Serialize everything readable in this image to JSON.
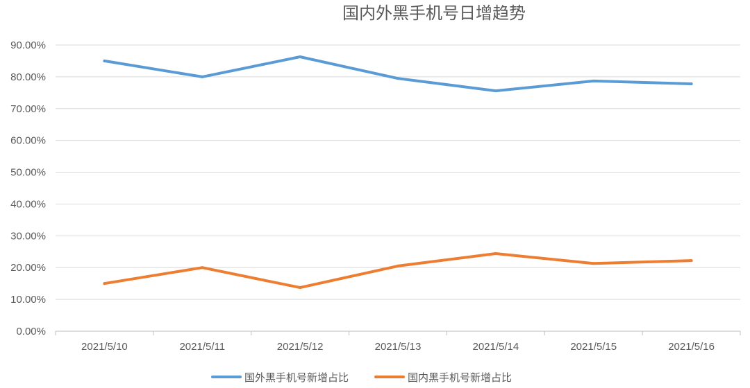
{
  "chart_data": {
    "type": "line",
    "title": "国内外黑手机号日增趋势",
    "xlabel": "",
    "ylabel": "",
    "categories": [
      "2021/5/10",
      "2021/5/11",
      "2021/5/12",
      "2021/5/13",
      "2021/5/14",
      "2021/5/15",
      "2021/5/16"
    ],
    "series": [
      {
        "name": "国外黑手机号新增占比",
        "color": "#5b9bd5",
        "values": [
          85.0,
          80.0,
          86.3,
          79.5,
          75.6,
          78.7,
          77.8
        ]
      },
      {
        "name": "国内黑手机号新增占比",
        "color": "#ed7d31",
        "values": [
          15.0,
          20.0,
          13.7,
          20.5,
          24.4,
          21.3,
          22.2
        ]
      }
    ],
    "ylim": [
      0,
      90
    ],
    "yticks": [
      "0.00%",
      "10.00%",
      "20.00%",
      "30.00%",
      "40.00%",
      "50.00%",
      "60.00%",
      "70.00%",
      "80.00%",
      "90.00%"
    ],
    "grid": true,
    "legend": "bottom"
  }
}
